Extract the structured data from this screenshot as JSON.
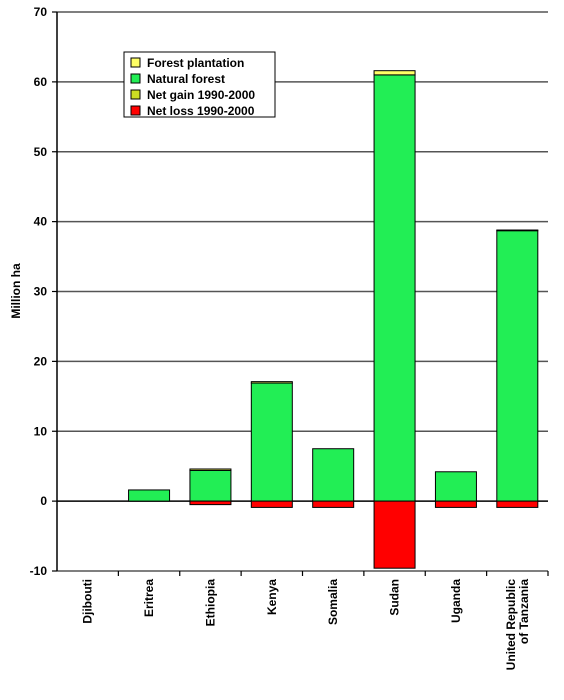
{
  "chart_data": {
    "type": "bar",
    "stacked": true,
    "ylabel": "Million ha",
    "xlabel": "",
    "ylim": [
      -10,
      70
    ],
    "yticks": [
      -10,
      0,
      10,
      20,
      30,
      40,
      50,
      60,
      70
    ],
    "grid": true,
    "legend_position": "top-left",
    "categories": [
      [
        "Djibouti"
      ],
      [
        "Eritrea"
      ],
      [
        "Ethiopia"
      ],
      [
        "Kenya"
      ],
      [
        "Somalia"
      ],
      [
        "Sudan"
      ],
      [
        "Uganda"
      ],
      [
        "United Republic",
        "of Tanzania"
      ]
    ],
    "series": [
      {
        "name": "Forest plantation",
        "color": "#ffff66",
        "values": [
          0,
          0,
          0.2,
          0.2,
          0,
          0.6,
          0,
          0.1
        ]
      },
      {
        "name": "Natural forest",
        "color": "#22ee55",
        "values": [
          0,
          1.6,
          4.4,
          16.9,
          7.5,
          61.0,
          4.2,
          38.7
        ]
      },
      {
        "name": "Net gain 1990-2000",
        "color": "#ccdd22",
        "values": [
          0,
          0,
          0,
          0,
          0,
          0,
          0,
          0
        ]
      },
      {
        "name": "Net loss 1990-2000",
        "color": "#ff0000",
        "values": [
          0,
          0,
          -0.5,
          -0.9,
          -0.9,
          -9.6,
          -0.9,
          -0.9
        ]
      }
    ]
  }
}
